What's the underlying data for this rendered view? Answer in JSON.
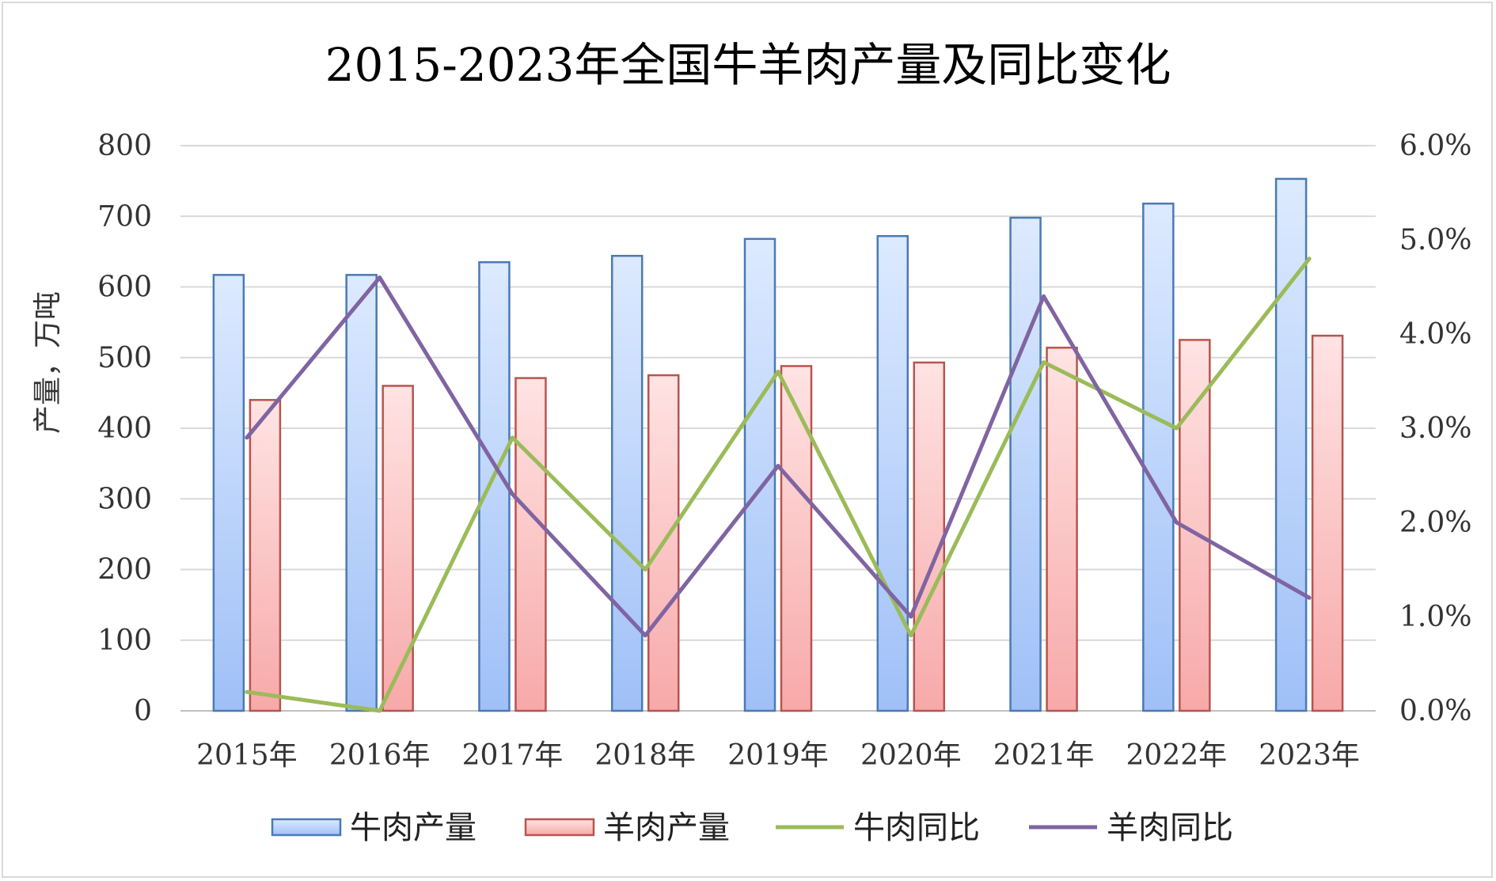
{
  "chart_data": {
    "type": "bar",
    "title": "2015-2023年全国牛羊肉产量及同比变化",
    "ylabel": "产量，万吨",
    "y2label": "",
    "categories": [
      "2015年",
      "2016年",
      "2017年",
      "2018年",
      "2019年",
      "2020年",
      "2021年",
      "2022年",
      "2023年"
    ],
    "ylim": [
      0,
      800
    ],
    "yticks": [
      "0",
      "100",
      "200",
      "300",
      "400",
      "500",
      "600",
      "700",
      "800"
    ],
    "y2lim": [
      0,
      0.06
    ],
    "y2ticks": [
      "0.0%",
      "1.0%",
      "2.0%",
      "3.0%",
      "4.0%",
      "5.0%",
      "6.0%"
    ],
    "grid": true,
    "legend_position": "bottom",
    "series": [
      {
        "name": "牛肉产量",
        "kind": "bar",
        "axis": "left",
        "color_top": "#ddeaff",
        "color_bottom": "#9fc0f7",
        "stroke": "#4a7ab5",
        "values": [
          617,
          617,
          635,
          644,
          668,
          672,
          698,
          718,
          753
        ]
      },
      {
        "name": "羊肉产量",
        "kind": "bar",
        "axis": "left",
        "color_top": "#ffe3e3",
        "color_bottom": "#f7a9a9",
        "stroke": "#b85450",
        "values": [
          440,
          460,
          471,
          475,
          488,
          493,
          514,
          525,
          531
        ]
      },
      {
        "name": "牛肉同比",
        "kind": "line",
        "axis": "right",
        "color": "#9bbb59",
        "values": [
          0.002,
          0.0,
          0.029,
          0.015,
          0.036,
          0.008,
          0.037,
          0.03,
          0.048
        ]
      },
      {
        "name": "羊肉同比",
        "kind": "line",
        "axis": "right",
        "color": "#8064a2",
        "values": [
          0.029,
          0.046,
          0.023,
          0.008,
          0.026,
          0.01,
          0.044,
          0.02,
          0.012
        ]
      }
    ]
  }
}
